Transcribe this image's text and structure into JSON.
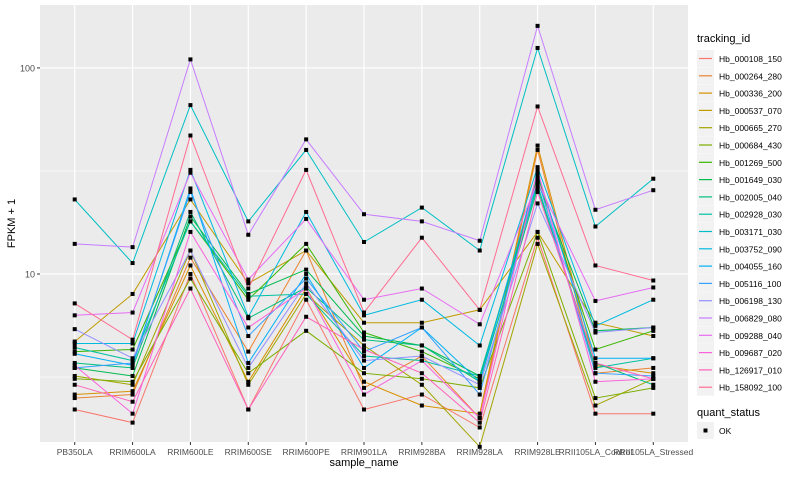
{
  "chart_data": {
    "type": "line",
    "xlabel": "sample_name",
    "ylabel": "FPKM + 1",
    "y_scale": "log10",
    "ylim": [
      1.53,
      202
    ],
    "y_ticks": [
      10,
      100
    ],
    "y_tick_labels": [
      "10",
      "100"
    ],
    "grid": true,
    "legend_placement": "right",
    "categories": [
      "PB350LA",
      "RRIM600LA",
      "RRIM600LE",
      "RRIM600SE",
      "RRIM600PE",
      "RRIM901LA",
      "RRIM928BA",
      "RRIM928LA",
      "RRIM928LE",
      "RRII105LA_Control",
      "RRII105LA_Stressed"
    ],
    "legend_title": "tracking_id",
    "series": [
      {
        "name": "Hb_000108_150",
        "color": "#F8766D",
        "values": [
          2.2,
          1.9,
          10,
          2.2,
          7.5,
          2.2,
          2.6,
          1.8,
          15,
          2.1,
          2.1
        ]
      },
      {
        "name": "Hb_000264_280",
        "color": "#EA8331",
        "values": [
          2.5,
          2.6,
          12,
          4.2,
          13,
          2.8,
          4.0,
          2.0,
          40,
          3.3,
          3.5
        ]
      },
      {
        "name": "Hb_000336_200",
        "color": "#D89000",
        "values": [
          2.6,
          2.7,
          11,
          3.0,
          8.5,
          3.0,
          2.3,
          2.1,
          42,
          3.6,
          3.3
        ]
      },
      {
        "name": "Hb_000537_070",
        "color": "#C09B00",
        "values": [
          4.7,
          8.0,
          23,
          9.0,
          13,
          5.8,
          5.8,
          6.7,
          16,
          5.8,
          5.0
        ]
      },
      {
        "name": "Hb_000665_270",
        "color": "#A3A500",
        "values": [
          3.2,
          2.9,
          13,
          2.9,
          8.0,
          4.5,
          2.9,
          1.45,
          14,
          2.3,
          3.1
        ]
      },
      {
        "name": "Hb_000684_430",
        "color": "#7CAE00",
        "values": [
          3.1,
          3.0,
          9.5,
          3.3,
          5.3,
          3.3,
          3.1,
          2.8,
          16,
          2.5,
          2.8
        ]
      },
      {
        "name": "Hb_001269_500",
        "color": "#39B600",
        "values": [
          4.2,
          4.3,
          18,
          7.5,
          14,
          5.2,
          4.2,
          3.1,
          30,
          4.3,
          5.3
        ]
      },
      {
        "name": "Hb_001649_030",
        "color": "#00BB4E",
        "values": [
          3.5,
          3.2,
          19,
          8.0,
          10.5,
          5.0,
          4.5,
          3.2,
          28,
          5.3,
          5.5
        ]
      },
      {
        "name": "Hb_002005_040",
        "color": "#00BF7D",
        "values": [
          3.7,
          3.5,
          20,
          6.1,
          8.6,
          4.8,
          4.5,
          3.0,
          26,
          3.7,
          2.9
        ]
      },
      {
        "name": "Hb_002928_030",
        "color": "#00C1A3",
        "values": [
          4.4,
          3.8,
          18,
          7.8,
          8.0,
          4.0,
          3.8,
          3.2,
          27,
          3.5,
          3.9
        ]
      },
      {
        "name": "Hb_003171_030",
        "color": "#00BFC4",
        "values": [
          23,
          11.3,
          66,
          18,
          40,
          14.3,
          21,
          13,
          125,
          17,
          29
        ]
      },
      {
        "name": "Hb_003752_090",
        "color": "#00BAE0",
        "values": [
          4.6,
          4.6,
          32,
          6.2,
          20,
          6.3,
          7.5,
          4.5,
          33,
          5.6,
          7.5
        ]
      },
      {
        "name": "Hb_004055_160",
        "color": "#00B0F6",
        "values": [
          4.1,
          3.6,
          26,
          3.7,
          10,
          3.5,
          5.5,
          3.0,
          31,
          3.9,
          3.9
        ]
      },
      {
        "name": "Hb_005116_100",
        "color": "#35A2FF",
        "values": [
          3.5,
          3.7,
          25,
          5.0,
          9.5,
          4.2,
          5.5,
          2.6,
          29,
          3.3,
          3.2
        ]
      },
      {
        "name": "Hb_006198_130",
        "color": "#9590FF",
        "values": [
          5.4,
          3.9,
          13,
          3.5,
          9,
          3.8,
          4.0,
          2.9,
          22,
          5.2,
          5.5
        ]
      },
      {
        "name": "Hb_006829_080",
        "color": "#C77CFF",
        "values": [
          14,
          13.5,
          110,
          15.5,
          45,
          19.5,
          18,
          14.5,
          160,
          20.5,
          25.5
        ]
      },
      {
        "name": "Hb_009288_040",
        "color": "#E76BF3",
        "values": [
          6.3,
          6.5,
          31,
          9.4,
          18.5,
          7.5,
          8.5,
          5.7,
          28,
          7.4,
          8.6
        ]
      },
      {
        "name": "Hb_009687_020",
        "color": "#FA62DB",
        "values": [
          3.6,
          2.1,
          16,
          5.5,
          8.5,
          2.6,
          3.8,
          2.0,
          32,
          3.0,
          3.1
        ]
      },
      {
        "name": "Hb_126917_010",
        "color": "#FF62BC",
        "values": [
          2.9,
          2.4,
          8.5,
          2.2,
          6.2,
          4.3,
          3.3,
          1.9,
          25,
          3.7,
          3.1
        ]
      },
      {
        "name": "Hb_158092_100",
        "color": "#FF6C91",
        "values": [
          7.2,
          4.8,
          47,
          8.5,
          32,
          6.5,
          15,
          6.7,
          65,
          11,
          9.3
        ]
      }
    ],
    "shape_legend_title": "quant_status",
    "shape_legend_items": [
      "OK"
    ],
    "panel_color": "#EBEBEB",
    "point_color": "#000000"
  }
}
